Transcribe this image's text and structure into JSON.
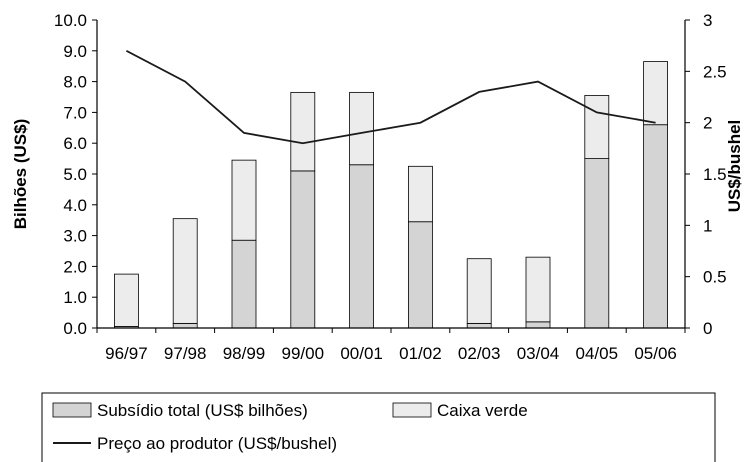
{
  "chart_data": {
    "type": "bar",
    "categories": [
      "96/97",
      "97/98",
      "98/99",
      "99/00",
      "00/01",
      "01/02",
      "02/03",
      "03/04",
      "04/05",
      "05/06"
    ],
    "series": [
      {
        "name": "Subsídio total (US$ bilhões)",
        "kind": "bar-stack-base",
        "axis": "left",
        "color": "#d4d4d4",
        "values": [
          0.05,
          0.15,
          2.85,
          5.1,
          5.3,
          3.45,
          0.15,
          0.2,
          5.5,
          6.6
        ]
      },
      {
        "name": "Caixa verde",
        "kind": "bar-stack-top",
        "axis": "left",
        "color": "#ececec",
        "values": [
          1.7,
          3.4,
          2.6,
          2.55,
          2.35,
          1.8,
          2.1,
          2.1,
          2.05,
          2.05
        ]
      },
      {
        "name": "Preço ao produtor (US$/bushel)",
        "kind": "line",
        "axis": "right",
        "color": "#1a1a1a",
        "values": [
          2.7,
          2.4,
          1.9,
          1.8,
          1.9,
          2.0,
          2.3,
          2.4,
          2.1,
          2.0
        ]
      }
    ],
    "ylabel": "Bilhões (US$)",
    "y2label": "US$/bushel",
    "xlabel": "",
    "ylim": [
      0,
      10
    ],
    "y2lim": [
      0,
      3
    ],
    "yticks": [
      "0.0",
      "1.0",
      "2.0",
      "3.0",
      "4.0",
      "5.0",
      "6.0",
      "7.0",
      "8.0",
      "9.0",
      "10.0"
    ],
    "y2ticks": [
      "0",
      "0.5",
      "1",
      "1.5",
      "2",
      "2.5",
      "3"
    ],
    "grid": false,
    "legend_position": "bottom"
  }
}
